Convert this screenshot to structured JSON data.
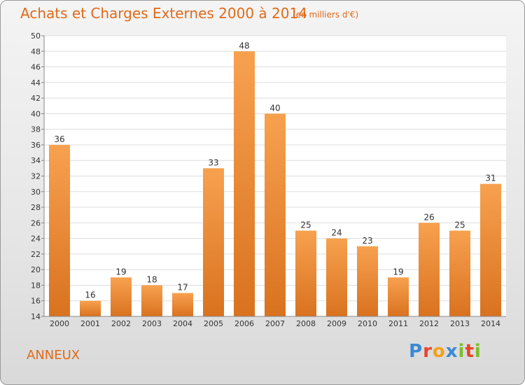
{
  "header": {
    "title": "Achats et Charges Externes 2000 à 2014",
    "subtitle": "(en milliers d'€)"
  },
  "footer": {
    "commune": "ANNEUX",
    "logo": "Proxiti"
  },
  "colors": {
    "accent": "#e06a1a",
    "bar_top": "#f7a14f",
    "bar_bottom": "#d9721f"
  },
  "chart_data": {
    "type": "bar",
    "title": "Achats et Charges Externes 2000 à 2014",
    "subtitle": "(en milliers d'€)",
    "categories": [
      "2000",
      "2001",
      "2002",
      "2003",
      "2004",
      "2005",
      "2006",
      "2007",
      "2008",
      "2009",
      "2010",
      "2011",
      "2012",
      "2013",
      "2014"
    ],
    "values": [
      36,
      16,
      19,
      18,
      17,
      33,
      48,
      40,
      25,
      24,
      23,
      19,
      26,
      25,
      31
    ],
    "yticks": [
      14,
      16,
      18,
      20,
      22,
      24,
      26,
      28,
      30,
      32,
      34,
      36,
      38,
      40,
      42,
      44,
      46,
      48,
      50
    ],
    "ylim": [
      14,
      50
    ],
    "grid": true,
    "xlabel": "",
    "ylabel": ""
  }
}
